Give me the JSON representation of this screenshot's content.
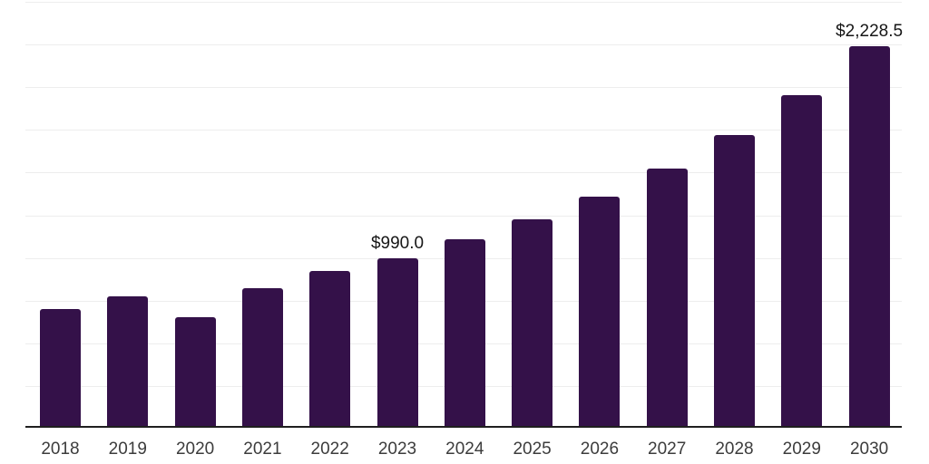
{
  "chart_data": {
    "type": "bar",
    "title": "",
    "xlabel": "",
    "ylabel": "",
    "categories": [
      "2018",
      "2019",
      "2020",
      "2021",
      "2022",
      "2023",
      "2024",
      "2025",
      "2026",
      "2027",
      "2028",
      "2029",
      "2030"
    ],
    "values": [
      690.0,
      765.0,
      640.0,
      810.0,
      915.0,
      990.0,
      1100.0,
      1215.0,
      1350.0,
      1515.0,
      1710.0,
      1945.0,
      2228.5
    ],
    "data_labels": [
      {
        "category": "2023",
        "index": 5,
        "text": "$990.0"
      },
      {
        "category": "2030",
        "index": 12,
        "text": "$2,228.5"
      }
    ],
    "ylim": [
      0,
      2500
    ],
    "gridline_step": 250,
    "grid": "horizontal gridlines only, no y-axis tick labels, no legend, no title",
    "legend_position": "none",
    "colors": {
      "bar": "#341149",
      "axis_line": "#1f1f1f",
      "gridline": "#ededed",
      "x_tick_label": "#3c3c3c",
      "data_label": "#161616",
      "background": "#ffffff"
    }
  }
}
